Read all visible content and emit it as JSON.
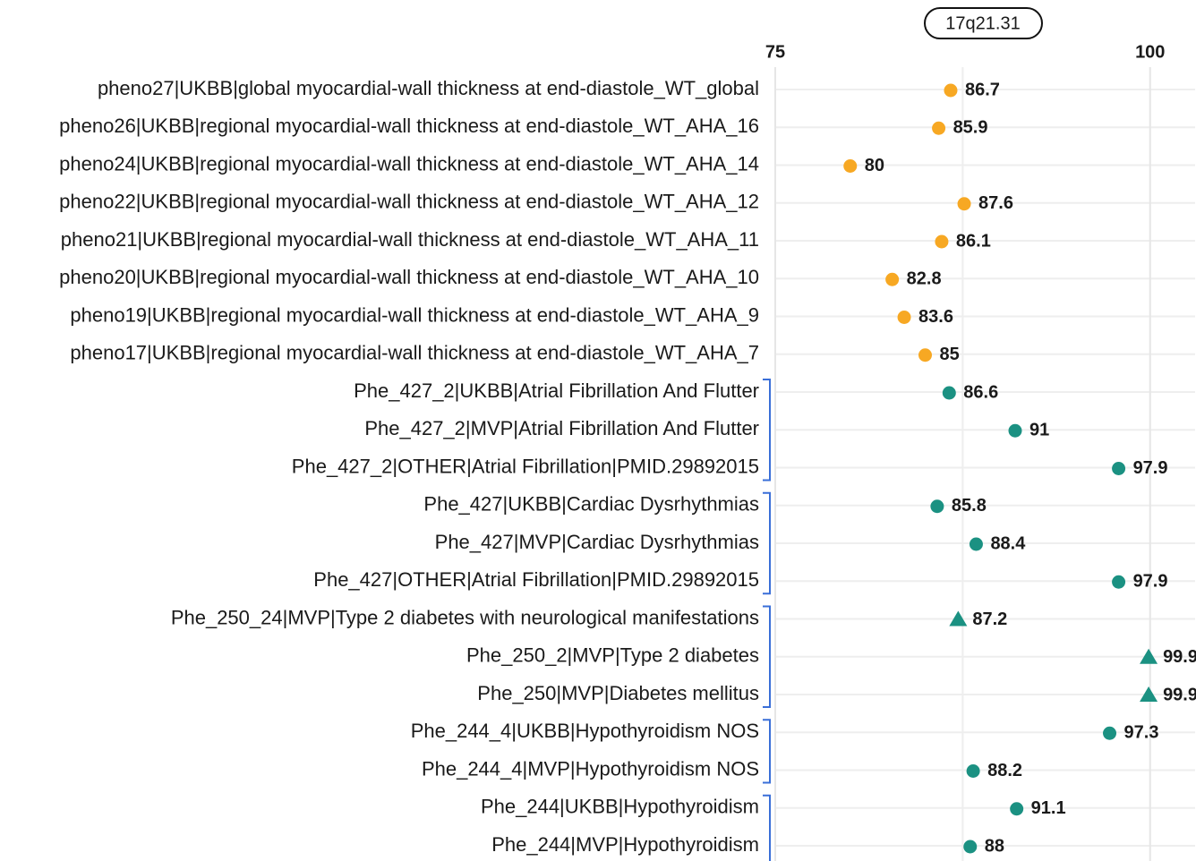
{
  "chart_data": {
    "type": "dot",
    "annotation": "17q21.31",
    "categories": [
      "pheno27|UKBB|global myocardial-wall thickness at end-diastole_WT_global",
      "pheno26|UKBB|regional myocardial-wall thickness at end-diastole_WT_AHA_16",
      "pheno24|UKBB|regional myocardial-wall thickness at end-diastole_WT_AHA_14",
      "pheno22|UKBB|regional myocardial-wall thickness at end-diastole_WT_AHA_12",
      "pheno21|UKBB|regional myocardial-wall thickness at end-diastole_WT_AHA_11",
      "pheno20|UKBB|regional myocardial-wall thickness at end-diastole_WT_AHA_10",
      "pheno19|UKBB|regional myocardial-wall thickness at end-diastole_WT_AHA_9",
      "pheno17|UKBB|regional myocardial-wall thickness at end-diastole_WT_AHA_7",
      "Phe_427_2|UKBB|Atrial Fibrillation And Flutter",
      "Phe_427_2|MVP|Atrial Fibrillation And Flutter",
      "Phe_427_2|OTHER|Atrial Fibrillation|PMID.29892015",
      "Phe_427|UKBB|Cardiac Dysrhythmias",
      "Phe_427|MVP|Cardiac Dysrhythmias",
      "Phe_427|OTHER|Atrial Fibrillation|PMID.29892015",
      "Phe_250_24|MVP|Type 2 diabetes with neurological manifestations",
      "Phe_250_2|MVP|Type 2 diabetes",
      "Phe_250|MVP|Diabetes mellitus",
      "Phe_244_4|UKBB|Hypothyroidism NOS",
      "Phe_244_4|MVP|Hypothyroidism NOS",
      "Phe_244|UKBB|Hypothyroidism",
      "Phe_244|MVP|Hypothyroidism"
    ],
    "values": [
      86.7,
      85.9,
      80,
      87.6,
      86.1,
      82.8,
      83.6,
      85,
      86.6,
      91,
      97.9,
      85.8,
      88.4,
      97.9,
      87.2,
      99.9,
      99.9,
      97.3,
      88.2,
      91.1,
      88
    ],
    "colors": [
      "#f7a823",
      "#f7a823",
      "#f7a823",
      "#f7a823",
      "#f7a823",
      "#f7a823",
      "#f7a823",
      "#f7a823",
      "#1b9182",
      "#1b9182",
      "#1b9182",
      "#1b9182",
      "#1b9182",
      "#1b9182",
      "#1b9182",
      "#1b9182",
      "#1b9182",
      "#1b9182",
      "#1b9182",
      "#1b9182",
      "#1b9182"
    ],
    "markers": [
      "circle",
      "circle",
      "circle",
      "circle",
      "circle",
      "circle",
      "circle",
      "circle",
      "circle",
      "circle",
      "circle",
      "circle",
      "circle",
      "circle",
      "triangle",
      "triangle",
      "triangle",
      "circle",
      "circle",
      "circle",
      "circle"
    ],
    "xlim": [
      75,
      103
    ],
    "xticks": [
      75,
      100
    ],
    "grid": true
  }
}
